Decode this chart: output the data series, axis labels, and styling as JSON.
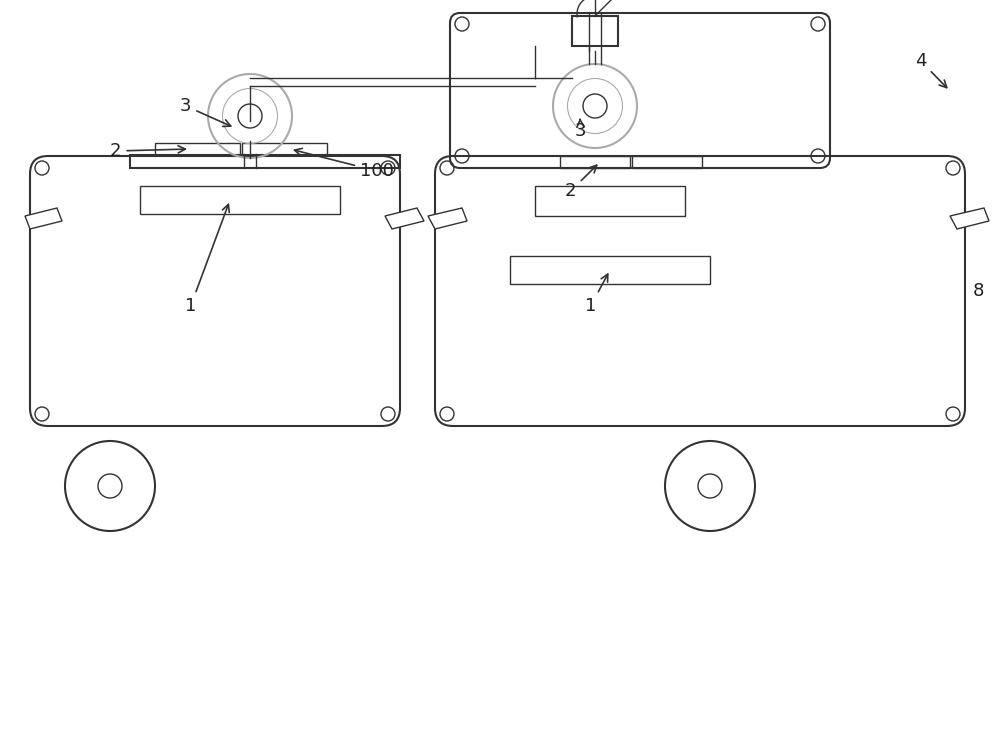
{
  "bg_color": "#ffffff",
  "line_color": "#333333",
  "gray_line": "#aaaaaa",
  "light_gray": "#cccccc",
  "label_color": "#222222",
  "fig_width": 10.0,
  "fig_height": 7.46,
  "dpi": 100,
  "labels": {
    "1_left": [
      1,
      [
        1.85,
        4.35
      ]
    ],
    "1_right": [
      1,
      [
        5.85,
        4.35
      ]
    ],
    "2_left": [
      2,
      [
        1.1,
        5.9
      ]
    ],
    "2_right": [
      2,
      [
        5.65,
        5.5
      ]
    ],
    "3_left": [
      3,
      [
        1.8,
        6.35
      ]
    ],
    "3_right": [
      3,
      [
        5.75,
        6.1
      ]
    ],
    "100": [
      100,
      [
        3.6,
        5.7
      ]
    ],
    "4": [
      4,
      [
        9.15,
        6.8
      ]
    ]
  }
}
